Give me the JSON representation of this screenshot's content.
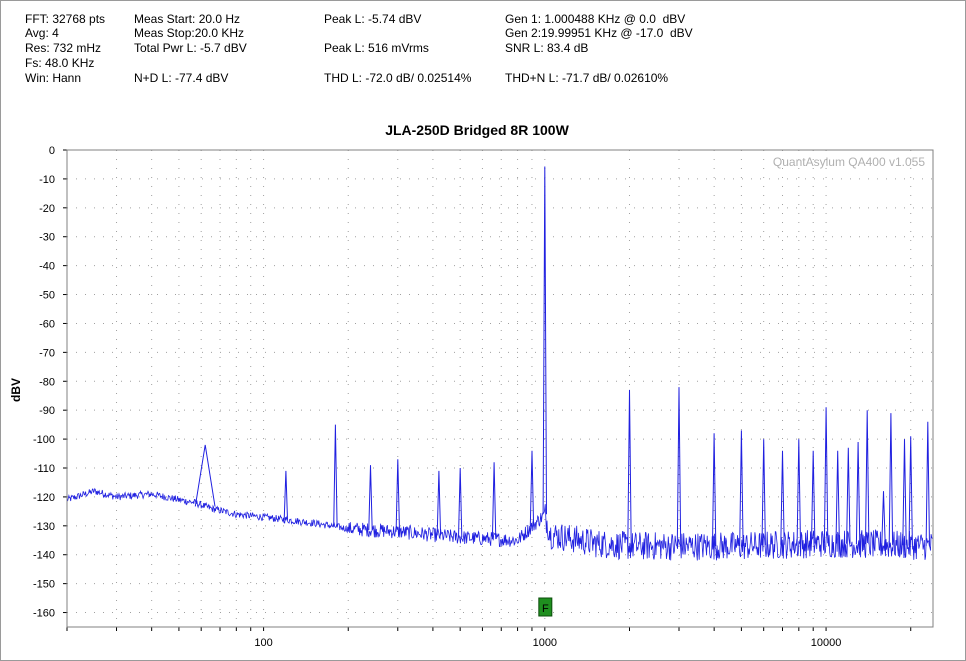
{
  "header": {
    "fft": "FFT: 32768 pts",
    "avg": "Avg: 4",
    "res": "Res: 732 mHz",
    "fs": "Fs: 48.0 KHz",
    "win": "Win: Hann",
    "meas_start": "Meas Start: 20.0 Hz",
    "meas_stop": "Meas Stop:20.0 KHz",
    "total_pwr": "Total Pwr L: -5.7 dBV",
    "nd": "N+D L: -77.4 dBV",
    "peak_dbv": "Peak L: -5.74 dBV",
    "peak_vrms": "Peak L: 516 mVrms",
    "thd": "THD L: -72.0 dB/ 0.02514%",
    "gen1": "Gen 1: 1.000488 KHz @ 0.0  dBV",
    "gen2": "Gen 2:19.99951 KHz @ -17.0  dBV",
    "snr": "SNR L: 83.4 dB",
    "thdn": "THD+N L: -71.7 dB/ 0.02610%"
  },
  "chart_data": {
    "type": "line",
    "title": "JLA-250D Bridged 8R 100W",
    "ylabel": "dBV",
    "xlabel": "",
    "watermark": "QuantAsylum QA400 v1.055",
    "marker_label": "F",
    "marker_freq": 1000,
    "xscale": "log",
    "xlim": [
      20,
      24000
    ],
    "ylim": [
      -165,
      0
    ],
    "grid": true,
    "yticks": [
      0,
      -10,
      -20,
      -30,
      -40,
      -50,
      -60,
      -70,
      -80,
      -90,
      -100,
      -110,
      -120,
      -130,
      -140,
      -150,
      -160
    ],
    "xtick_labels": [
      {
        "value": 100,
        "label": "100"
      },
      {
        "value": 1000,
        "label": "1000"
      },
      {
        "value": 10000,
        "label": "10000"
      }
    ],
    "series": [
      {
        "color": "#2020e0",
        "noise_floor": [
          [
            20,
            -121
          ],
          [
            25,
            -118
          ],
          [
            30,
            -120
          ],
          [
            40,
            -119
          ],
          [
            50,
            -121
          ],
          [
            57,
            -122
          ],
          [
            65,
            -124
          ],
          [
            80,
            -126
          ],
          [
            100,
            -127
          ],
          [
            150,
            -129
          ],
          [
            200,
            -131
          ],
          [
            300,
            -132
          ],
          [
            500,
            -134
          ],
          [
            800,
            -135
          ],
          [
            1000,
            -126
          ],
          [
            1050,
            -133
          ],
          [
            1500,
            -136
          ],
          [
            2000,
            -137
          ],
          [
            3000,
            -137
          ],
          [
            5000,
            -137
          ],
          [
            10000,
            -136
          ],
          [
            24000,
            -137
          ]
        ],
        "peaks": [
          {
            "x": 62,
            "y": -102
          },
          {
            "x": 120,
            "y": -111
          },
          {
            "x": 180,
            "y": -95
          },
          {
            "x": 240,
            "y": -109
          },
          {
            "x": 300,
            "y": -107
          },
          {
            "x": 420,
            "y": -111
          },
          {
            "x": 500,
            "y": -110
          },
          {
            "x": 660,
            "y": -108
          },
          {
            "x": 900,
            "y": -104
          },
          {
            "x": 1000,
            "y": -5.7
          },
          {
            "x": 2000,
            "y": -83
          },
          {
            "x": 3000,
            "y": -82
          },
          {
            "x": 4000,
            "y": -98
          },
          {
            "x": 5000,
            "y": -97
          },
          {
            "x": 6000,
            "y": -100
          },
          {
            "x": 7000,
            "y": -104
          },
          {
            "x": 8000,
            "y": -100
          },
          {
            "x": 9000,
            "y": -104
          },
          {
            "x": 10000,
            "y": -89
          },
          {
            "x": 11000,
            "y": -104
          },
          {
            "x": 12000,
            "y": -103
          },
          {
            "x": 13000,
            "y": -101
          },
          {
            "x": 14000,
            "y": -90
          },
          {
            "x": 16000,
            "y": -118
          },
          {
            "x": 17000,
            "y": -91
          },
          {
            "x": 19000,
            "y": -100
          },
          {
            "x": 20000,
            "y": -99
          },
          {
            "x": 23000,
            "y": -94
          }
        ]
      }
    ]
  }
}
